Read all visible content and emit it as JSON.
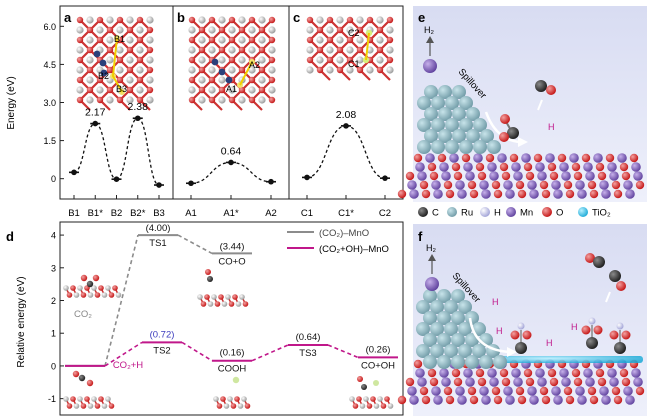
{
  "panel_letters": {
    "a": "a",
    "b": "b",
    "c": "c",
    "d": "d",
    "e": "e",
    "f": "f"
  },
  "top": {
    "ylabel": "Energy (eV)",
    "yticks": [
      "6.0",
      "4.5",
      "3.0",
      "1.5",
      "0"
    ]
  },
  "bottom": {
    "ylabel": "Relative energy (eV)",
    "yticks": [
      "4",
      "3",
      "2",
      "1",
      "0",
      "-1"
    ]
  },
  "struct_labels": {
    "a": [
      "B1",
      "B2",
      "B3"
    ],
    "b": [
      "A1",
      "A2"
    ],
    "c": [
      "C1",
      "C2"
    ]
  },
  "colors": {
    "co2_mno": "#8c8c8c",
    "co2oh_mno": "#c0178a",
    "ts2_label": "#3b3bbd",
    "oxygen": "#d42020",
    "ti_grey": "#b8b8b8"
  },
  "chart_data": [
    {
      "type": "line",
      "panel": "a",
      "x": [
        "B1",
        "B1*",
        "B2",
        "B2*",
        "B3"
      ],
      "values": [
        0.25,
        2.17,
        -0.02,
        2.38,
        -0.25
      ],
      "labels": [
        "",
        "2.17",
        "",
        "2.38",
        ""
      ],
      "ylim": [
        -0.8,
        6.8
      ],
      "ylabel": "Energy (eV)"
    },
    {
      "type": "line",
      "panel": "b",
      "x": [
        "A1",
        "A1*",
        "A2"
      ],
      "values": [
        -0.18,
        0.64,
        -0.12
      ],
      "labels": [
        "",
        "0.64",
        ""
      ],
      "ylim": [
        -0.8,
        6.8
      ]
    },
    {
      "type": "line",
      "panel": "c",
      "x": [
        "C1",
        "C1*",
        "C2"
      ],
      "values": [
        0.05,
        2.08,
        0.02
      ],
      "labels": [
        "",
        "2.08",
        ""
      ],
      "ylim": [
        -0.8,
        6.8
      ]
    },
    {
      "type": "line",
      "panel": "d",
      "ylim": [
        -1.5,
        4.4
      ],
      "yticks": [
        4,
        3,
        2,
        1,
        0,
        -1
      ],
      "ylabel": "Relative energy (eV)",
      "legend": [
        "(CO₂)–MnO",
        "(CO₂+OH)–MnO"
      ],
      "series": [
        {
          "name": "(CO₂)–MnO",
          "states": [
            "CO₂",
            "TS1",
            "CO+O"
          ],
          "values": [
            0,
            4.0,
            3.44
          ],
          "value_labels": [
            "",
            "(4.00)",
            "(3.44)"
          ]
        },
        {
          "name": "(CO₂+OH)–MnO",
          "states": [
            "CO₂+H",
            "TS2",
            "COOH",
            "TS3",
            "CO+OH"
          ],
          "values": [
            0,
            0.72,
            0.16,
            0.64,
            0.26
          ],
          "value_labels": [
            "",
            "(0.72)",
            "(0.16)",
            "(0.64)",
            "(0.26)"
          ]
        }
      ]
    }
  ],
  "panel_e": {
    "labels": {
      "h2": "H₂",
      "spillover": "Spillover",
      "h": "H"
    }
  },
  "panel_f": {
    "labels": {
      "h2": "H₂",
      "spillover": "Spillover",
      "h": "H"
    }
  },
  "element_legend": [
    {
      "symbol": "C",
      "color": "#3a3a3a"
    },
    {
      "symbol": "Ru",
      "color": "#bfe4ec"
    },
    {
      "symbol": "H",
      "color": "#cfd0f0"
    },
    {
      "symbol": "Mn",
      "color": "#8a6ec2"
    },
    {
      "symbol": "O",
      "color": "#e06b6b"
    },
    {
      "symbol": "TiO₂",
      "color": "#36c7ec"
    }
  ]
}
